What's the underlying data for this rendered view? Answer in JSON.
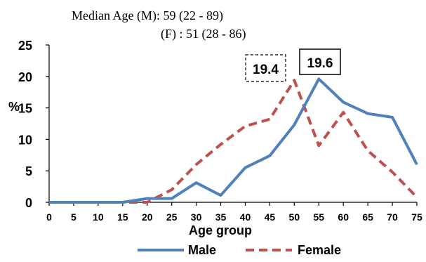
{
  "chart_data": {
    "type": "line",
    "annotations": {
      "median_male": "Median Age (M): 59 (22 - 89)",
      "median_female": "(F) : 51 (28 - 86)",
      "peak_female_label": "19.4",
      "peak_male_label": "19.6"
    },
    "xlabel": "Age group",
    "ylabel": "%",
    "x": [
      0,
      5,
      10,
      15,
      20,
      25,
      30,
      35,
      40,
      45,
      50,
      55,
      60,
      65,
      70,
      75
    ],
    "ylim": [
      0,
      25
    ],
    "yticks": [
      0,
      5,
      10,
      15,
      20,
      25
    ],
    "grid": false,
    "legend_position": "bottom-center",
    "series": [
      {
        "name": "Male",
        "color": "#4f81bd",
        "style": "solid",
        "values": [
          0,
          0,
          0,
          0,
          0.6,
          0.6,
          3.1,
          1.1,
          5.5,
          7.4,
          12.3,
          19.6,
          15.9,
          14.1,
          13.5,
          6.0
        ]
      },
      {
        "name": "Female",
        "color": "#c0504d",
        "style": "dashed",
        "values": [
          0,
          0,
          0,
          0,
          0,
          2.0,
          6.0,
          9.2,
          12.1,
          13.2,
          19.4,
          9.0,
          14.3,
          8.2,
          4.8,
          0.8
        ]
      }
    ]
  }
}
